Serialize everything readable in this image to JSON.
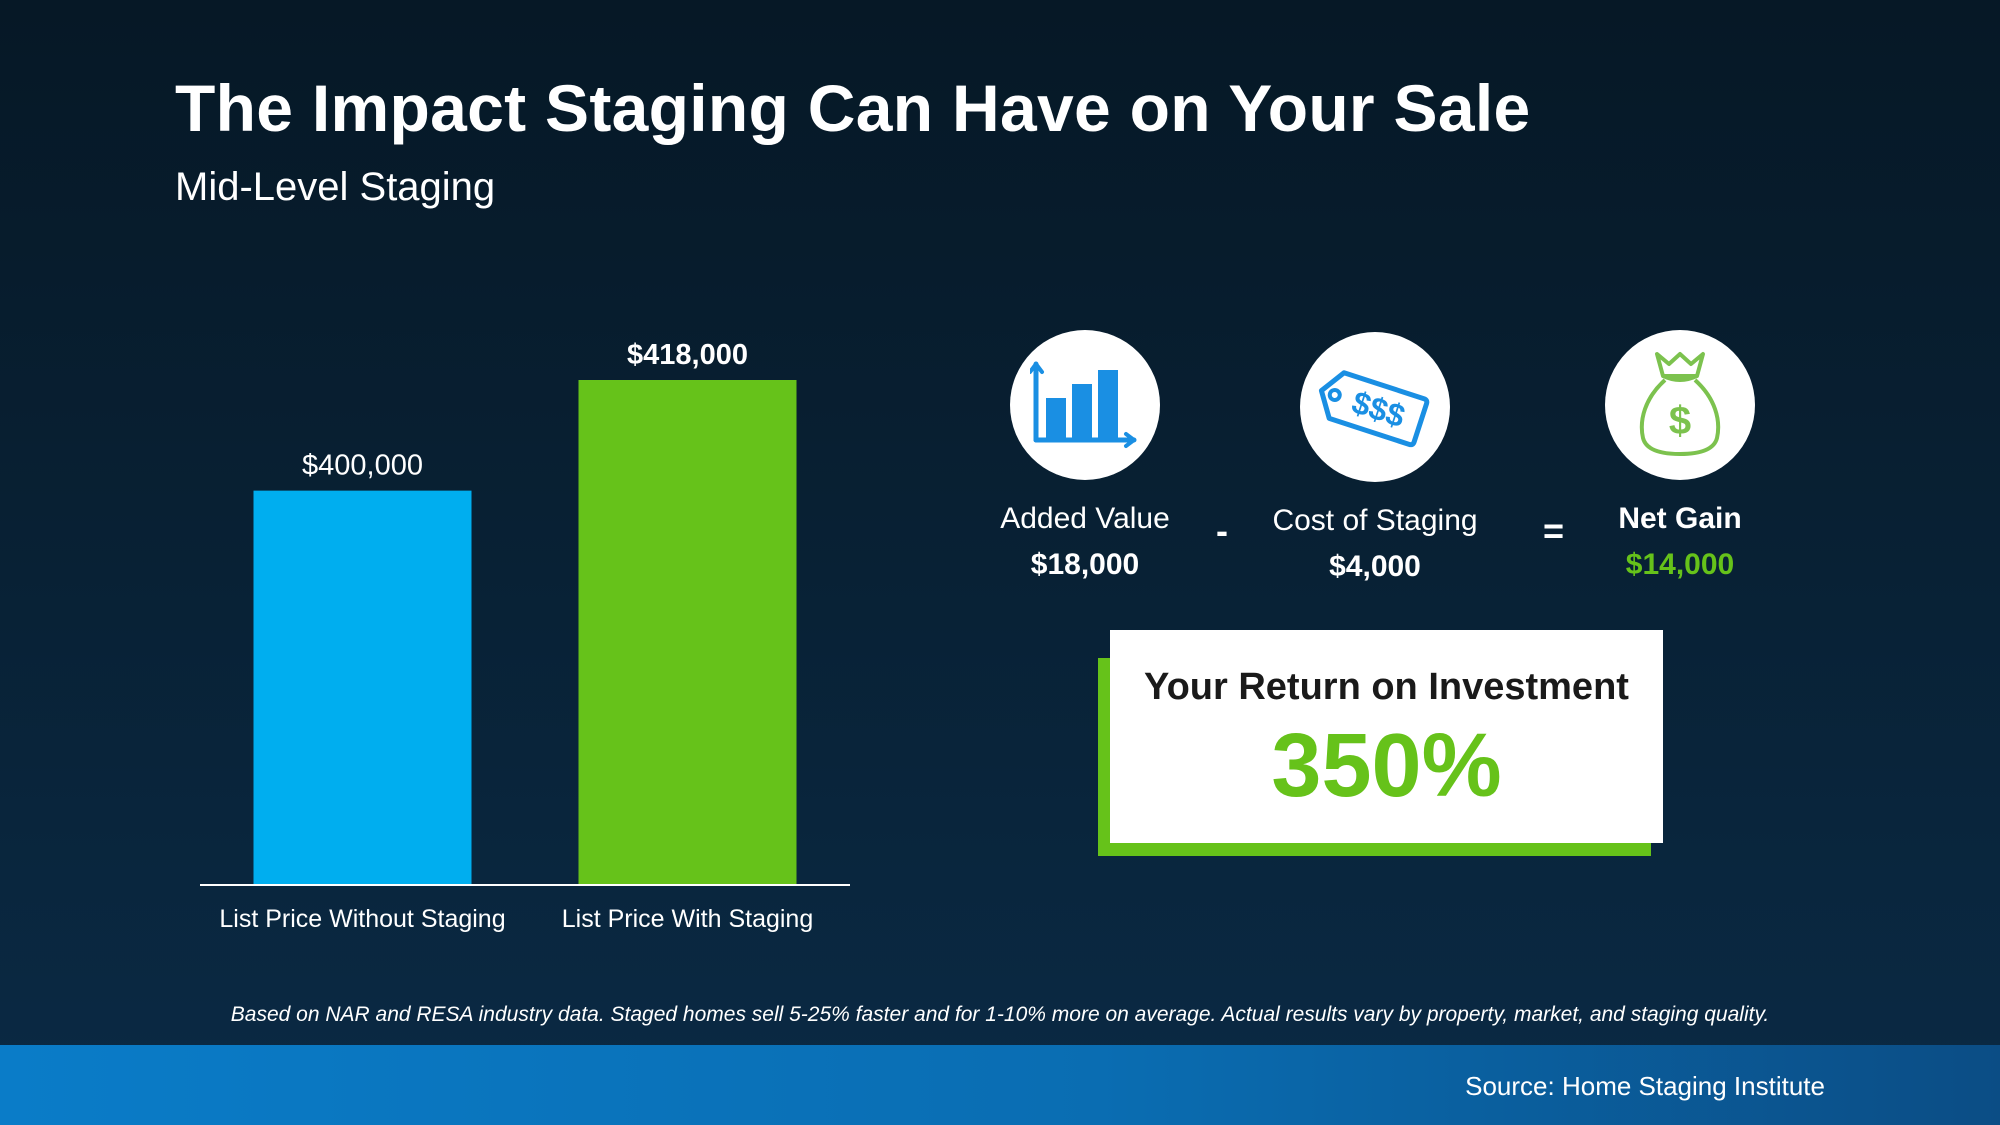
{
  "title": "The Impact Staging Can Have on Your Sale",
  "subtitle": "Mid-Level Staging",
  "chart_data": {
    "type": "bar",
    "categories": [
      "List Price Without Staging",
      "List Price With Staging"
    ],
    "values": [
      400000,
      418000
    ],
    "value_labels": [
      "$400,000",
      "$418,000"
    ],
    "colors": [
      "#00aeef",
      "#66c21a"
    ],
    "ylim": [
      0,
      418000
    ],
    "grid": false
  },
  "equation": {
    "added_value": {
      "label": "Added Value",
      "value": "$18,000",
      "icon": "bar-chart-icon"
    },
    "minus_symbol": "-",
    "cost": {
      "label": "Cost of Staging",
      "value": "$4,000",
      "icon": "price-tag-icon",
      "tag_text": "$$$"
    },
    "equals_symbol": "=",
    "net_gain": {
      "label": "Net Gain",
      "value": "$14,000",
      "icon": "money-bag-icon",
      "bag_symbol": "$"
    }
  },
  "roi": {
    "title": "Your Return on Investment",
    "value": "350%"
  },
  "footnote": "Based on NAR and RESA industry data. Staged homes sell 5-25% faster and for 1-10% more on average. Actual results vary by property, market, and staging quality.",
  "source": "Source: Home Staging Institute",
  "colors": {
    "accent_blue": "#00aeef",
    "accent_green": "#66c21a",
    "icon_blue": "#1a8fe3",
    "icon_green": "#7cc24e"
  }
}
